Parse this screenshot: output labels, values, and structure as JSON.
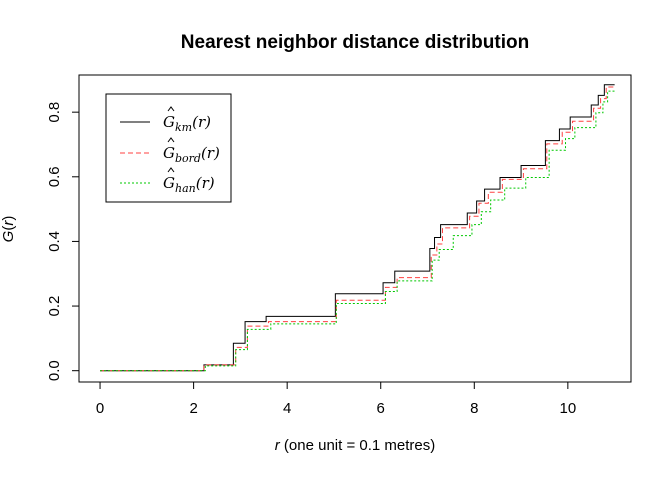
{
  "chart_data": {
    "type": "line",
    "title": "Nearest neighbor distance distribution",
    "xlabel_var": "r",
    "xlabel_rest": " (one unit = 0.1 metres)",
    "ylabel_fn": "G",
    "ylabel_var": "r",
    "xlim": [
      -0.45,
      11.35
    ],
    "ylim": [
      -0.035,
      0.915
    ],
    "x_ticks": [
      0,
      2,
      4,
      6,
      8,
      10
    ],
    "y_ticks": [
      0.0,
      0.2,
      0.4,
      0.6,
      0.8
    ],
    "x_tick_labels": [
      "0",
      "2",
      "4",
      "6",
      "8",
      "10"
    ],
    "y_tick_labels": [
      "0.0",
      "0.2",
      "0.4",
      "0.6",
      "0.8"
    ],
    "grid": false,
    "legend_position": "top-left",
    "series": [
      {
        "key": "km",
        "legend_base": "G",
        "legend_sub": "km",
        "legend_arg": "(r)",
        "color": "#000000",
        "dash": "",
        "step_x": [
          0,
          2.22,
          2.85,
          3.1,
          3.55,
          5.03,
          6.05,
          6.3,
          7.05,
          7.15,
          7.28,
          7.85,
          8.05,
          8.22,
          8.55,
          9.0,
          9.52,
          9.82,
          10.05,
          10.5,
          10.65,
          10.78,
          11.0
        ],
        "step_y": [
          0,
          0.018,
          0.085,
          0.152,
          0.168,
          0.238,
          0.272,
          0.308,
          0.378,
          0.412,
          0.452,
          0.488,
          0.525,
          0.562,
          0.598,
          0.635,
          0.712,
          0.748,
          0.785,
          0.822,
          0.852,
          0.885,
          0.885
        ]
      },
      {
        "key": "bord",
        "legend_base": "G",
        "legend_sub": "bord",
        "legend_arg": "(r)",
        "color": "#ff4040",
        "dash": "5,3",
        "step_x": [
          0,
          2.22,
          2.9,
          3.15,
          3.6,
          5.05,
          6.1,
          6.35,
          7.08,
          7.2,
          7.32,
          7.9,
          8.1,
          8.3,
          8.6,
          9.05,
          9.55,
          9.88,
          10.1,
          10.55,
          10.7,
          10.82,
          11.0
        ],
        "step_y": [
          0,
          0.018,
          0.072,
          0.138,
          0.152,
          0.218,
          0.258,
          0.288,
          0.358,
          0.392,
          0.442,
          0.478,
          0.518,
          0.552,
          0.592,
          0.625,
          0.702,
          0.738,
          0.772,
          0.812,
          0.842,
          0.878,
          0.878
        ]
      },
      {
        "key": "han",
        "legend_base": "G",
        "legend_sub": "han",
        "legend_arg": "(r)",
        "color": "#00c800",
        "dash": "2,2",
        "step_x": [
          0,
          2.25,
          2.9,
          3.15,
          3.65,
          5.05,
          6.1,
          6.35,
          7.1,
          7.25,
          7.55,
          7.95,
          8.15,
          8.35,
          8.65,
          9.1,
          9.6,
          9.95,
          10.15,
          10.6,
          10.75,
          10.85,
          11.0
        ],
        "step_y": [
          0,
          0.015,
          0.065,
          0.128,
          0.145,
          0.208,
          0.245,
          0.278,
          0.342,
          0.375,
          0.418,
          0.452,
          0.492,
          0.528,
          0.565,
          0.598,
          0.682,
          0.718,
          0.752,
          0.798,
          0.832,
          0.865,
          0.865
        ]
      }
    ]
  }
}
